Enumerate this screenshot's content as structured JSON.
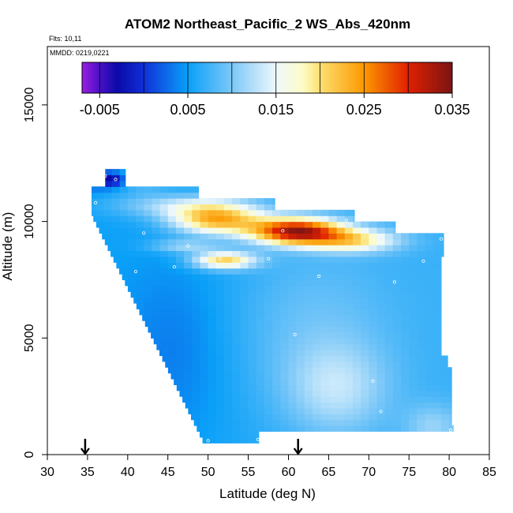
{
  "chart_data": {
    "type": "heatmap",
    "title": "ATOM2 Northeast_Pacific_2 WS_Abs_420nm",
    "flights_label": "Flts: 10,11",
    "mmdd_label": "MMDD: 0219,0221",
    "xlabel": "Latitude (deg N)",
    "ylabel": "Altitude (m)",
    "xlim": [
      30,
      85
    ],
    "ylim": [
      0,
      17500
    ],
    "x_ticks": [
      "30",
      "35",
      "40",
      "45",
      "50",
      "55",
      "60",
      "65",
      "70",
      "75",
      "80",
      "85"
    ],
    "y_ticks": [
      "0",
      "5000",
      "10000",
      "15000"
    ],
    "colorbar": {
      "range": [
        -0.007,
        0.035
      ],
      "tick_labels": [
        "-0.005",
        "0.005",
        "0.015",
        "0.025",
        "0.035"
      ],
      "tick_values": [
        -0.005,
        0.005,
        0.015,
        0.025,
        0.035
      ],
      "separators": [
        -0.005,
        0,
        0.005,
        0.01,
        0.015,
        0.02,
        0.025,
        0.03
      ],
      "color_stops": [
        {
          "v": -0.007,
          "c": "#9a1fe0"
        },
        {
          "v": -0.005,
          "c": "#4a10c8"
        },
        {
          "v": -0.003,
          "c": "#0a0aa8"
        },
        {
          "v": 0.0,
          "c": "#1030d8"
        },
        {
          "v": 0.005,
          "c": "#0aa0f8"
        },
        {
          "v": 0.01,
          "c": "#7cc8f8"
        },
        {
          "v": 0.015,
          "c": "#eef8fc"
        },
        {
          "v": 0.018,
          "c": "#fcfcc8"
        },
        {
          "v": 0.02,
          "c": "#fce070"
        },
        {
          "v": 0.025,
          "c": "#fc9800"
        },
        {
          "v": 0.03,
          "c": "#e02000"
        },
        {
          "v": 0.035,
          "c": "#7a1414"
        }
      ]
    },
    "arrows_latitude": [
      34.7,
      61.2
    ],
    "sample_points": [
      {
        "lat": 37.2,
        "alt": 11950
      },
      {
        "lat": 38.5,
        "alt": 11800
      },
      {
        "lat": 36.0,
        "alt": 10800
      },
      {
        "lat": 42.0,
        "alt": 9500
      },
      {
        "lat": 47.5,
        "alt": 8950
      },
      {
        "lat": 45.8,
        "alt": 8050
      },
      {
        "lat": 41.0,
        "alt": 7850
      },
      {
        "lat": 51.5,
        "alt": 8400
      },
      {
        "lat": 57.5,
        "alt": 8400
      },
      {
        "lat": 59.3,
        "alt": 9600
      },
      {
        "lat": 67.2,
        "alt": 10050
      },
      {
        "lat": 79.0,
        "alt": 9250
      },
      {
        "lat": 76.8,
        "alt": 8300
      },
      {
        "lat": 63.8,
        "alt": 7650
      },
      {
        "lat": 73.2,
        "alt": 7400
      },
      {
        "lat": 60.8,
        "alt": 5150
      },
      {
        "lat": 70.5,
        "alt": 3150
      },
      {
        "lat": 71.5,
        "alt": 1850
      },
      {
        "lat": 50.0,
        "alt": 600
      },
      {
        "lat": 56.2,
        "alt": 650
      },
      {
        "lat": 80.2,
        "alt": 1050
      }
    ]
  }
}
